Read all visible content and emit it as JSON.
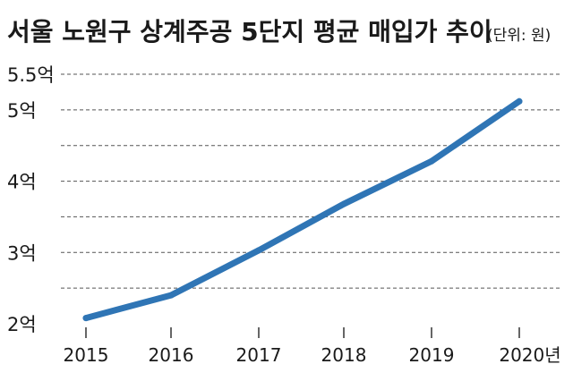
{
  "chart_data": {
    "type": "line",
    "title": "서울 노원구 상계주공 5단지 평균 매입가  추이",
    "unit_note": "(단위: 원)",
    "x": [
      "2015",
      "2016",
      "2017",
      "2018",
      "2019",
      "2020년"
    ],
    "series": [
      {
        "values": [
          2.08,
          2.4,
          3.03,
          3.68,
          4.28,
          5.12
        ]
      }
    ],
    "ylim": [
      2,
      5.5
    ],
    "y_ticks": [
      "2억",
      "3억",
      "4억",
      "5억",
      "5.5억"
    ],
    "y_tick_values": [
      2,
      3,
      4,
      5,
      5.5
    ],
    "grid": "dashed horizontal",
    "colors": {
      "line": "#2f75b5",
      "grid": "#555555",
      "text": "#1a1a1a"
    }
  }
}
